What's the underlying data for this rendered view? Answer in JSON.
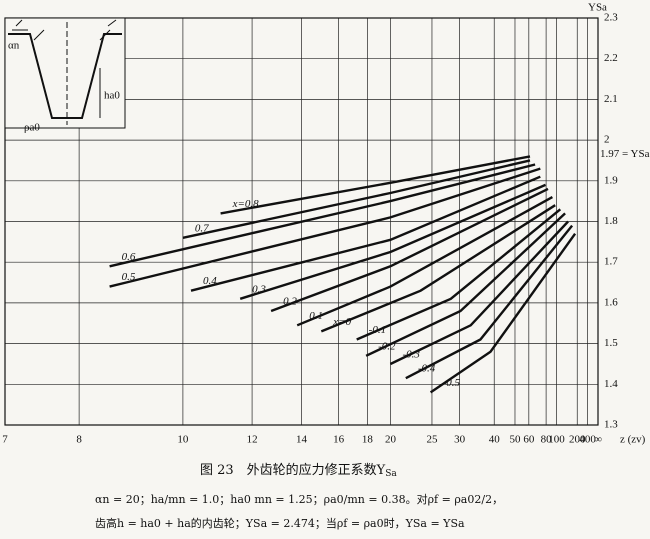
{
  "chart_data": {
    "type": "line",
    "title": "图 23　外齿轮的应力修正系数Y",
    "title_sub": "Sa",
    "notes": [
      "αn = 20；ha/mn = 1.0；ha0 mn = 1.25；ρa0/mn = 0.38。对ρf = ρa02/2，",
      "齿高h = ha0 + ha的内齿轮；YSa = 2.474；当ρf = ρa0时，YSa = YSa"
    ],
    "xlabel": "z (zv)",
    "ylabel": "YSa",
    "xscale": "reciprocal",
    "xlim": [
      7,
      null
    ],
    "xticks": [
      7,
      8,
      10,
      12,
      14,
      16,
      18,
      20,
      25,
      30,
      40,
      50,
      60,
      80,
      100,
      200,
      400,
      {
        "value": null,
        "label": "∞"
      }
    ],
    "ylim": [
      1.3,
      2.3
    ],
    "yticks": [
      1.3,
      1.4,
      1.5,
      1.6,
      1.7,
      1.8,
      1.9,
      2.0,
      2.1,
      2.2,
      2.3
    ],
    "grid": true,
    "annotations": [
      {
        "text": "1.97 = YSa ∞",
        "value": 1.97
      }
    ],
    "inset_labels": [
      "αn",
      "ha0",
      "ρa0"
    ],
    "series": [
      {
        "name": "x=0.8",
        "color": "#111111",
        "x": [
          11,
          20,
          61
        ],
        "values": [
          1.82,
          1.895,
          1.96
        ]
      },
      {
        "name": "0.7",
        "color": "#111111",
        "x": [
          10,
          20,
          61
        ],
        "values": [
          1.76,
          1.87,
          1.95
        ]
      },
      {
        "name": "0.6",
        "color": "#111111",
        "x": [
          8.5,
          20,
          66
        ],
        "values": [
          1.69,
          1.85,
          1.94
        ]
      },
      {
        "name": "0.5",
        "color": "#111111",
        "x": [
          8.5,
          20,
          72
        ],
        "values": [
          1.64,
          1.81,
          1.93
        ]
      },
      {
        "name": "0.4",
        "color": "#111111",
        "x": [
          10.2,
          20,
          72
        ],
        "values": [
          1.63,
          1.755,
          1.91
        ]
      },
      {
        "name": "0.3",
        "color": "#111111",
        "x": [
          11.6,
          20,
          79
        ],
        "values": [
          1.61,
          1.725,
          1.89
        ]
      },
      {
        "name": "0.2",
        "color": "#111111",
        "x": [
          12.7,
          20,
          83
        ],
        "values": [
          1.58,
          1.69,
          1.88
        ]
      },
      {
        "name": "0.1",
        "color": "#111111",
        "x": [
          13.8,
          20,
          91
        ],
        "values": [
          1.545,
          1.64,
          1.86
        ]
      },
      {
        "name": "x=0",
        "color": "#111111",
        "x": [
          15,
          23.4,
          97
        ],
        "values": [
          1.53,
          1.63,
          1.84
        ]
      },
      {
        "name": "-0.1",
        "color": "#111111",
        "x": [
          17.2,
          28.2,
          110
        ],
        "values": [
          1.51,
          1.61,
          1.83
        ]
      },
      {
        "name": "-0.2",
        "color": "#111111",
        "x": [
          17.9,
          30.2,
          126
        ],
        "values": [
          1.47,
          1.58,
          1.82
        ]
      },
      {
        "name": "-0.3",
        "color": "#111111",
        "x": [
          20,
          32.6,
          139
        ],
        "values": [
          1.45,
          1.545,
          1.8
        ]
      },
      {
        "name": "-0.4",
        "color": "#111111",
        "x": [
          21.6,
          35.3,
          160
        ],
        "values": [
          1.415,
          1.51,
          1.79
        ]
      },
      {
        "name": "-0.5",
        "color": "#111111",
        "x": [
          24.8,
          38.6,
          181
        ],
        "values": [
          1.38,
          1.48,
          1.77
        ]
      }
    ]
  }
}
